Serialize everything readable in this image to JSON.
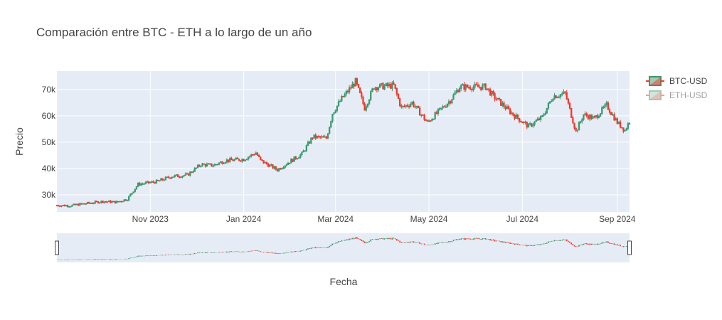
{
  "chart_data": {
    "type": "candlestick",
    "title": "Comparación entre BTC - ETH a lo largo de un año",
    "xlabel": "Fecha",
    "ylabel": "Precio",
    "x_range": [
      "2023-09-01",
      "2024-09-09"
    ],
    "ylim": [
      23500,
      77000
    ],
    "x_ticks": [
      {
        "date": "2023-11-01",
        "label": "Nov 2023"
      },
      {
        "date": "2024-01-01",
        "label": "Jan 2024"
      },
      {
        "date": "2024-03-01",
        "label": "Mar 2024"
      },
      {
        "date": "2024-05-01",
        "label": "May 2024"
      },
      {
        "date": "2024-07-01",
        "label": "Jul 2024"
      },
      {
        "date": "2024-09-01",
        "label": "Sep 2024"
      }
    ],
    "y_ticks": [
      {
        "value": 30000,
        "label": "30k"
      },
      {
        "value": 40000,
        "label": "40k"
      },
      {
        "value": 50000,
        "label": "50k"
      },
      {
        "value": 60000,
        "label": "60k"
      },
      {
        "value": 70000,
        "label": "70k"
      }
    ],
    "grid": true,
    "legend_position": "top-right",
    "rangeslider": true,
    "series": [
      {
        "name": "BTC-USD",
        "visible": true,
        "increasing_color": "#3D9970",
        "decreasing_color": "#EF3B2C",
        "key_points": [
          [
            "2023-09-01",
            26000
          ],
          [
            "2023-09-10",
            25900
          ],
          [
            "2023-09-20",
            26700
          ],
          [
            "2023-10-01",
            27500
          ],
          [
            "2023-10-10",
            27200
          ],
          [
            "2023-10-17",
            28400
          ],
          [
            "2023-10-24",
            34000
          ],
          [
            "2023-11-05",
            35000
          ],
          [
            "2023-11-15",
            37000
          ],
          [
            "2023-11-25",
            37500
          ],
          [
            "2023-12-04",
            41500
          ],
          [
            "2023-12-12",
            41200
          ],
          [
            "2023-12-20",
            43000
          ],
          [
            "2024-01-01",
            43500
          ],
          [
            "2024-01-09",
            46000
          ],
          [
            "2024-01-12",
            43000
          ],
          [
            "2024-01-23",
            39500
          ],
          [
            "2024-02-01",
            43000
          ],
          [
            "2024-02-08",
            45500
          ],
          [
            "2024-02-15",
            52000
          ],
          [
            "2024-02-24",
            51500
          ],
          [
            "2024-02-28",
            61000
          ],
          [
            "2024-03-05",
            66500
          ],
          [
            "2024-03-14",
            73000
          ],
          [
            "2024-03-20",
            63000
          ],
          [
            "2024-03-26",
            71000
          ],
          [
            "2024-04-08",
            71500
          ],
          [
            "2024-04-13",
            63000
          ],
          [
            "2024-04-20",
            65000
          ],
          [
            "2024-04-30",
            57500
          ],
          [
            "2024-05-15",
            66000
          ],
          [
            "2024-05-21",
            71000
          ],
          [
            "2024-06-07",
            71000
          ],
          [
            "2024-06-12",
            67500
          ],
          [
            "2024-06-25",
            60500
          ],
          [
            "2024-07-05",
            56000
          ],
          [
            "2024-07-14",
            59500
          ],
          [
            "2024-07-21",
            67500
          ],
          [
            "2024-07-29",
            68500
          ],
          [
            "2024-08-05",
            54000
          ],
          [
            "2024-08-10",
            60500
          ],
          [
            "2024-08-17",
            59000
          ],
          [
            "2024-08-25",
            64000
          ],
          [
            "2024-09-01",
            57500
          ],
          [
            "2024-09-06",
            54500
          ],
          [
            "2024-09-09",
            58000
          ]
        ]
      },
      {
        "name": "ETH-USD",
        "visible": false,
        "increasing_color": "#3D9970",
        "decreasing_color": "#EF3B2C",
        "key_points": []
      }
    ]
  }
}
